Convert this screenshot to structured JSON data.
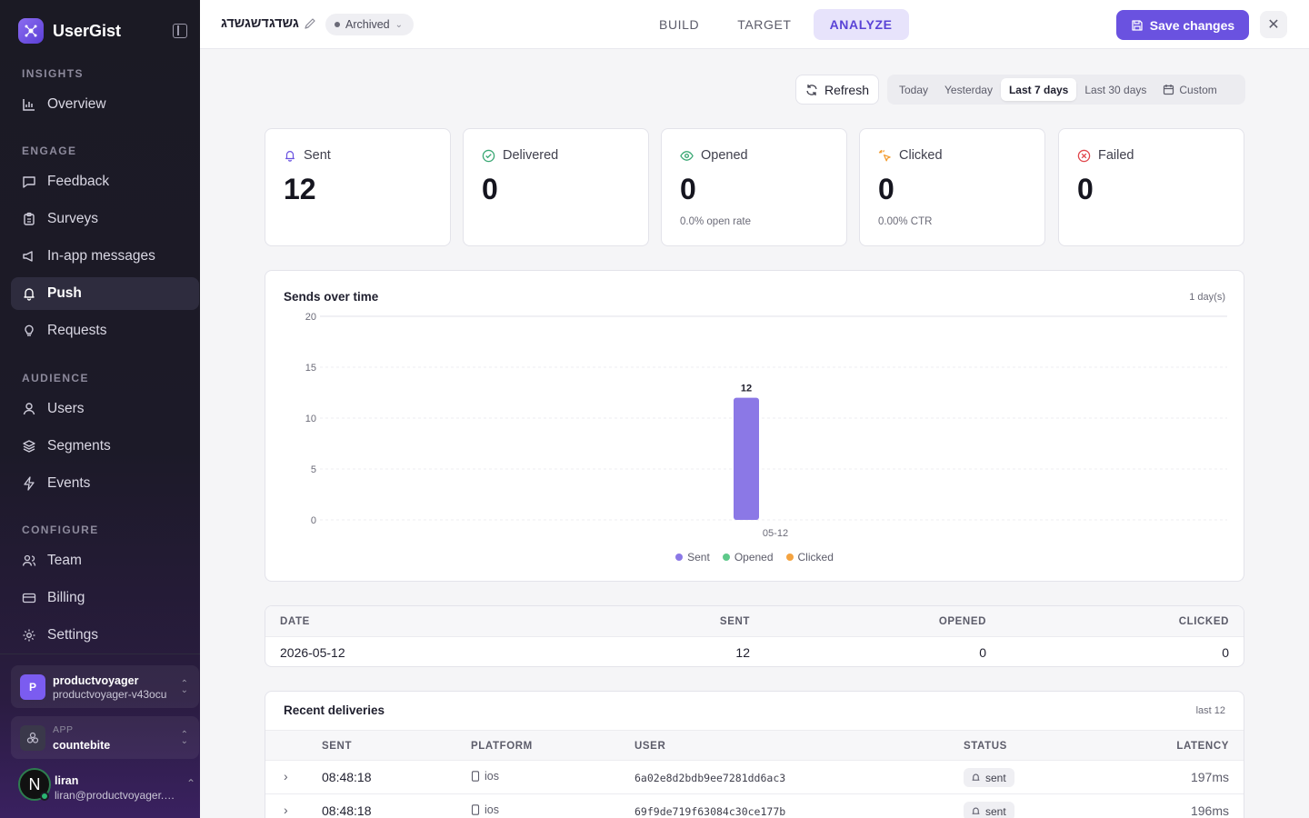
{
  "app": {
    "name": "UserGist"
  },
  "sidebar": {
    "sections": {
      "insights": "INSIGHTS",
      "engage": "ENGAGE",
      "audience": "AUDIENCE",
      "configure": "CONFIGURE"
    },
    "items": {
      "overview": "Overview",
      "feedback": "Feedback",
      "surveys": "Surveys",
      "inapp": "In-app messages",
      "push": "Push",
      "requests": "Requests",
      "users": "Users",
      "segments": "Segments",
      "events": "Events",
      "team": "Team",
      "billing": "Billing",
      "settings": "Settings"
    },
    "org": {
      "initial": "P",
      "name": "productvoyager",
      "slug": "productvoyager-v43ocu"
    },
    "app_switch": {
      "label": "APP",
      "name": "countebite"
    },
    "user": {
      "initial": "N",
      "name": "liran",
      "email": "liran@productvoyager.co..."
    }
  },
  "topbar": {
    "campaign_name": "גשדגדשגשדג",
    "status": "Archived",
    "tabs": [
      "BUILD",
      "TARGET",
      "ANALYZE"
    ],
    "save_label": "Save changes",
    "close_label": "✕"
  },
  "toolbar": {
    "refresh_label": "Refresh",
    "ranges": [
      "Today",
      "Yesterday",
      "Last 7 days",
      "Last 30 days",
      "Custom"
    ],
    "active_range": "Last 7 days"
  },
  "stats": {
    "sent": {
      "label": "Sent",
      "value": "12",
      "sub": ""
    },
    "delivered": {
      "label": "Delivered",
      "value": "0",
      "sub": ""
    },
    "opened": {
      "label": "Opened",
      "value": "0",
      "sub": "0.0% open rate"
    },
    "clicked": {
      "label": "Clicked",
      "value": "0",
      "sub": "0.00% CTR"
    },
    "failed": {
      "label": "Failed",
      "value": "0",
      "sub": ""
    }
  },
  "chart_section": {
    "title": "Sends over time",
    "note": "1 day(s)"
  },
  "chart_data": {
    "type": "bar",
    "title": "Sends over time",
    "categories": [
      "05-12"
    ],
    "series": [
      {
        "name": "Sent",
        "values": [
          12
        ],
        "color": "#8b78e6"
      },
      {
        "name": "Opened",
        "values": [
          0
        ],
        "color": "#5ec98a"
      },
      {
        "name": "Clicked",
        "values": [
          0
        ],
        "color": "#f4a340"
      }
    ],
    "ylim": [
      0,
      20
    ],
    "yticks": [
      0,
      5,
      10,
      15,
      20
    ],
    "data_labels": [
      "12"
    ],
    "grid": true,
    "legend": "bottom"
  },
  "daily_table": {
    "headers": [
      "DATE",
      "SENT",
      "OPENED",
      "CLICKED"
    ],
    "rows": [
      [
        "2026-05-12",
        "12",
        "0",
        "0"
      ]
    ]
  },
  "recent": {
    "title": "Recent deliveries",
    "note": "last 12",
    "headers": [
      "SENT",
      "PLATFORM",
      "USER",
      "STATUS",
      "LATENCY"
    ],
    "rows": [
      {
        "sent": "08:48:18",
        "platform": "ios",
        "user": "6a02e8d2bdb9ee7281dd6ac3",
        "status": "sent",
        "latency": "197ms"
      },
      {
        "sent": "08:48:18",
        "platform": "ios",
        "user": "69f9de719f63084c30ce177b",
        "status": "sent",
        "latency": "196ms"
      }
    ]
  },
  "colors": {
    "accent": "#6a52e0",
    "sidebar": "#1b1a24",
    "bar": "#8b78e6"
  }
}
